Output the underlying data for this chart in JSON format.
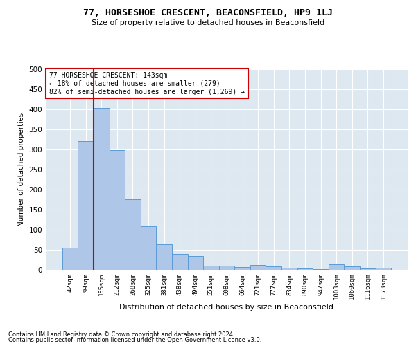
{
  "title": "77, HORSESHOE CRESCENT, BEACONSFIELD, HP9 1LJ",
  "subtitle": "Size of property relative to detached houses in Beaconsfield",
  "xlabel": "Distribution of detached houses by size in Beaconsfield",
  "ylabel": "Number of detached properties",
  "footer1": "Contains HM Land Registry data © Crown copyright and database right 2024.",
  "footer2": "Contains public sector information licensed under the Open Government Licence v3.0.",
  "annotation_line1": "77 HORSESHOE CRESCENT: 143sqm",
  "annotation_line2": "← 18% of detached houses are smaller (279)",
  "annotation_line3": "82% of semi-detached houses are larger (1,269) →",
  "categories": [
    "42sqm",
    "99sqm",
    "155sqm",
    "212sqm",
    "268sqm",
    "325sqm",
    "381sqm",
    "438sqm",
    "494sqm",
    "551sqm",
    "608sqm",
    "664sqm",
    "721sqm",
    "777sqm",
    "834sqm",
    "890sqm",
    "947sqm",
    "1003sqm",
    "1060sqm",
    "1116sqm",
    "1173sqm"
  ],
  "values": [
    55,
    320,
    403,
    298,
    176,
    108,
    63,
    40,
    35,
    10,
    10,
    7,
    12,
    8,
    5,
    3,
    2,
    13,
    8,
    3,
    6
  ],
  "bar_color": "#aec6e8",
  "bar_edge_color": "#5b9bd5",
  "red_line_color": "#cc0000",
  "background_color": "#dde8f0",
  "annotation_box_color": "#ffffff",
  "annotation_box_edge": "#cc0000",
  "ylim": [
    0,
    500
  ],
  "yticks": [
    0,
    50,
    100,
    150,
    200,
    250,
    300,
    350,
    400,
    450,
    500
  ]
}
